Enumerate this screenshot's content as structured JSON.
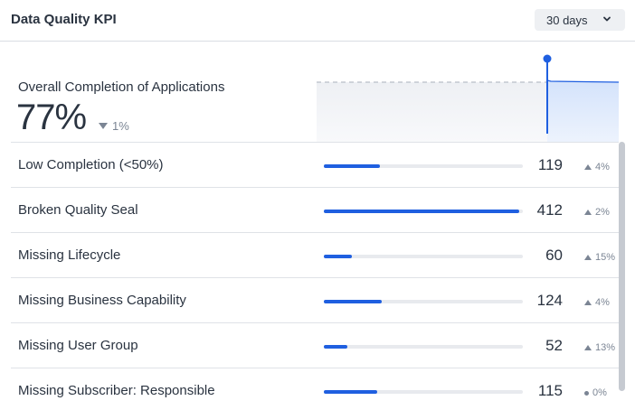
{
  "header": {
    "title": "Data Quality KPI",
    "range_value": "30 days"
  },
  "overall": {
    "label": "Overall Completion of Applications",
    "value": "77%",
    "change": "1%",
    "change_direction": "down"
  },
  "colors": {
    "accent": "#1f5fe0",
    "muted": "#7b8594"
  },
  "items": [
    {
      "label": "Low Completion (<50%)",
      "value": "119",
      "change": "4%",
      "direction": "up",
      "fill": 0.28
    },
    {
      "label": "Broken Quality Seal",
      "value": "412",
      "change": "2%",
      "direction": "up",
      "fill": 0.98
    },
    {
      "label": "Missing Lifecycle",
      "value": "60",
      "change": "15%",
      "direction": "up",
      "fill": 0.14
    },
    {
      "label": "Missing Business Capability",
      "value": "124",
      "change": "4%",
      "direction": "up",
      "fill": 0.29
    },
    {
      "label": "Missing User Group",
      "value": "52",
      "change": "13%",
      "direction": "up",
      "fill": 0.12
    },
    {
      "label": "Missing Subscriber: Responsible",
      "value": "115",
      "change": "0%",
      "direction": "flat",
      "fill": 0.27
    }
  ]
}
